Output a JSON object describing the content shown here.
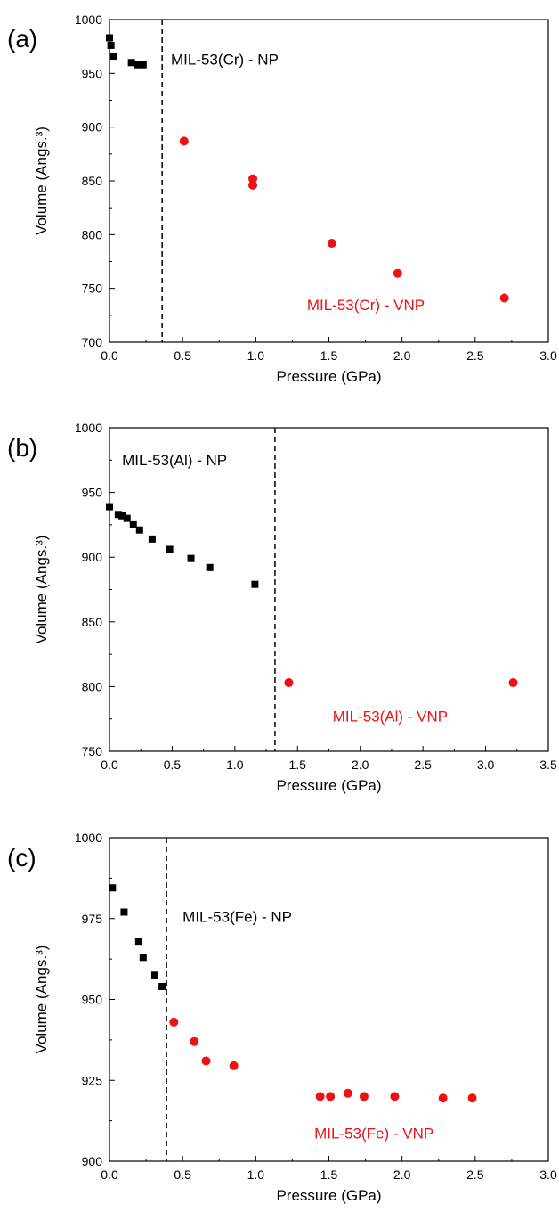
{
  "chart_data": [
    {
      "type": "scatter",
      "panel_label": "(a)",
      "xlabel": "Pressure (GPa)",
      "ylabel": "Volume (Angs.³)",
      "xlim": [
        0,
        3.0
      ],
      "ylim": [
        700,
        1000
      ],
      "xticks": [
        0.0,
        0.5,
        1.0,
        1.5,
        2.0,
        2.5,
        3.0
      ],
      "xtick_labels": [
        "0.0",
        "0.5",
        "1.0",
        "1.5",
        "2.0",
        "2.5",
        "3.0"
      ],
      "yticks": [
        700,
        750,
        800,
        850,
        900,
        950,
        1000
      ],
      "ytick_labels": [
        "700",
        "750",
        "800",
        "850",
        "900",
        "950",
        "1000"
      ],
      "divider_x": 0.36,
      "series": [
        {
          "color": "#000000",
          "marker": "square",
          "x": [
            0.0,
            0.01,
            0.03,
            0.15,
            0.19,
            0.23
          ],
          "y": [
            983,
            976,
            966,
            960,
            958,
            958
          ]
        },
        {
          "color": "#ee1111",
          "marker": "circle",
          "x": [
            0.51,
            0.98,
            0.98,
            1.52,
            1.97,
            2.7
          ],
          "y": [
            887,
            852,
            846,
            792,
            764,
            741
          ]
        }
      ],
      "annotations": [
        {
          "text": "MIL-53(Cr) - NP",
          "color": "#000000",
          "x": 0.42,
          "y": 958
        },
        {
          "text": "MIL-53(Cr) - VNP",
          "color": "#ee1111",
          "x": 1.35,
          "y": 730
        }
      ]
    },
    {
      "type": "scatter",
      "panel_label": "(b)",
      "xlabel": "Pressure (GPa)",
      "ylabel": "Volume (Angs.³)",
      "xlim": [
        0,
        3.5
      ],
      "ylim": [
        750,
        1000
      ],
      "xticks": [
        0.0,
        0.5,
        1.0,
        1.5,
        2.0,
        2.5,
        3.0,
        3.5
      ],
      "xtick_labels": [
        "0.0",
        "0.5",
        "1.0",
        "1.5",
        "2.0",
        "2.5",
        "3.0",
        "3.5"
      ],
      "yticks": [
        750,
        800,
        850,
        900,
        950,
        1000
      ],
      "ytick_labels": [
        "750",
        "800",
        "850",
        "900",
        "950",
        "1000"
      ],
      "divider_x": 1.32,
      "series": [
        {
          "color": "#000000",
          "marker": "square",
          "x": [
            0.0,
            0.07,
            0.1,
            0.14,
            0.19,
            0.24,
            0.34,
            0.48,
            0.65,
            0.8,
            1.16
          ],
          "y": [
            939,
            933,
            932,
            930,
            925,
            921,
            914,
            906,
            899,
            892,
            879
          ]
        },
        {
          "color": "#ee1111",
          "marker": "circle",
          "x": [
            1.43,
            3.22
          ],
          "y": [
            803,
            803
          ]
        }
      ],
      "annotations": [
        {
          "text": "MIL-53(Al) - NP",
          "color": "#000000",
          "x": 0.1,
          "y": 971
        },
        {
          "text": "MIL-53(Al) - VNP",
          "color": "#ee1111",
          "x": 1.78,
          "y": 773
        }
      ]
    },
    {
      "type": "scatter",
      "panel_label": "(c)",
      "xlabel": "Pressure (GPa)",
      "ylabel": "Volume (Angs.³)",
      "xlim": [
        0,
        3.0
      ],
      "ylim": [
        900,
        1000
      ],
      "xticks": [
        0.0,
        0.5,
        1.0,
        1.5,
        2.0,
        2.5,
        3.0
      ],
      "xtick_labels": [
        "0.0",
        "0.5",
        "1.0",
        "1.5",
        "2.0",
        "2.5",
        "3.0"
      ],
      "yticks": [
        900,
        925,
        950,
        975,
        1000
      ],
      "ytick_labels": [
        "900",
        "925",
        "950",
        "975",
        "1000"
      ],
      "divider_x": 0.39,
      "series": [
        {
          "color": "#000000",
          "marker": "square",
          "x": [
            0.02,
            0.1,
            0.2,
            0.23,
            0.31,
            0.36
          ],
          "y": [
            984.5,
            977,
            968,
            963,
            957.5,
            954
          ]
        },
        {
          "color": "#ee1111",
          "marker": "circle",
          "x": [
            0.44,
            0.58,
            0.66,
            0.85,
            1.44,
            1.51,
            1.63,
            1.74,
            1.95,
            2.28,
            2.48
          ],
          "y": [
            943,
            937,
            931,
            929.5,
            920,
            920,
            921,
            920,
            920,
            919.5,
            919.5
          ]
        }
      ],
      "annotations": [
        {
          "text": "MIL-53(Fe) - NP",
          "color": "#000000",
          "x": 0.5,
          "y": 974
        },
        {
          "text": "MIL-53(Fe) - VNP",
          "color": "#ee1111",
          "x": 1.4,
          "y": 907
        }
      ]
    }
  ]
}
